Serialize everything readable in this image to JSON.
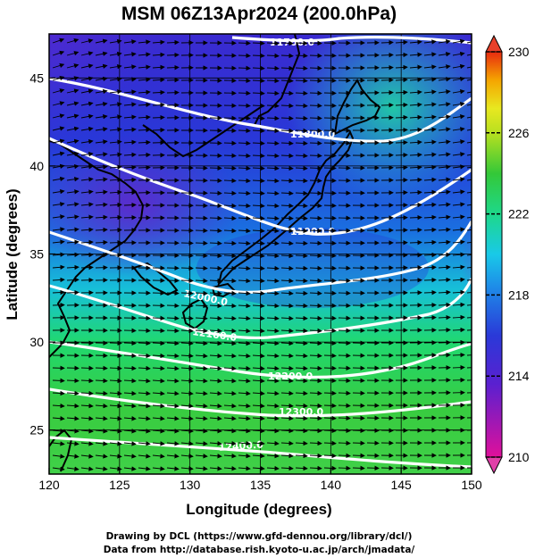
{
  "title": "MSM 06Z13Apr2024 (200.0hPa)",
  "x_axis": {
    "label": "Longitude (degrees)",
    "range": [
      120,
      150
    ],
    "ticks": [
      "120",
      "125",
      "130",
      "135",
      "140",
      "145",
      "150"
    ]
  },
  "y_axis": {
    "label": "Latitude  (degrees)",
    "range": [
      22.5,
      47.5
    ],
    "ticks": [
      "25",
      "30",
      "35",
      "40",
      "45"
    ]
  },
  "colorbar": {
    "range": [
      210,
      230
    ],
    "ticks": [
      "230",
      "226",
      "222",
      "218",
      "214",
      "210"
    ],
    "colors": [
      "#e0109a",
      "#2a39d8",
      "#19c9e8",
      "#34c838",
      "#e8e820",
      "#f5a500",
      "#e82a10"
    ]
  },
  "contours": [
    {
      "label": "11700.0"
    },
    {
      "label": "11800.0"
    },
    {
      "label": "11900.0"
    },
    {
      "label": "12000.0"
    },
    {
      "label": "12100.0"
    },
    {
      "label": "12200.0"
    },
    {
      "label": "12300.0"
    },
    {
      "label": "12400.0"
    }
  ],
  "credits": [
    "Drawing by DCL (https://www.gfd-dennou.org/library/dcl/)",
    "Data from http://database.rish.kyoto-u.ac.jp/arch/jmadata/"
  ]
}
